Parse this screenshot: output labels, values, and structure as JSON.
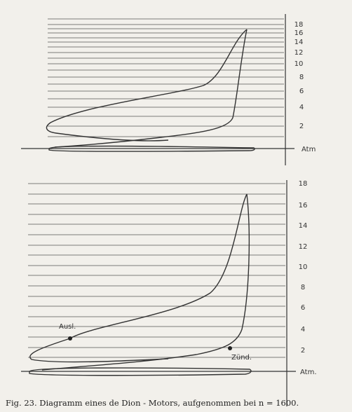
{
  "diagrams": [
    {
      "ticks": [
        "18",
        "16",
        "14",
        "12",
        "10",
        "8",
        "6",
        "4",
        "2"
      ],
      "atm_label": "Atm"
    },
    {
      "ticks": [
        "18",
        "16",
        "14",
        "12",
        "10",
        "8",
        "6",
        "4",
        "2"
      ],
      "atm_label": "Atm.",
      "annotations": [
        "Ausl.",
        "Zünd."
      ]
    }
  ],
  "caption": "Fig. 23.  Diagramm eines de Dion - Motors, aufgenommen bei n = 1600."
}
